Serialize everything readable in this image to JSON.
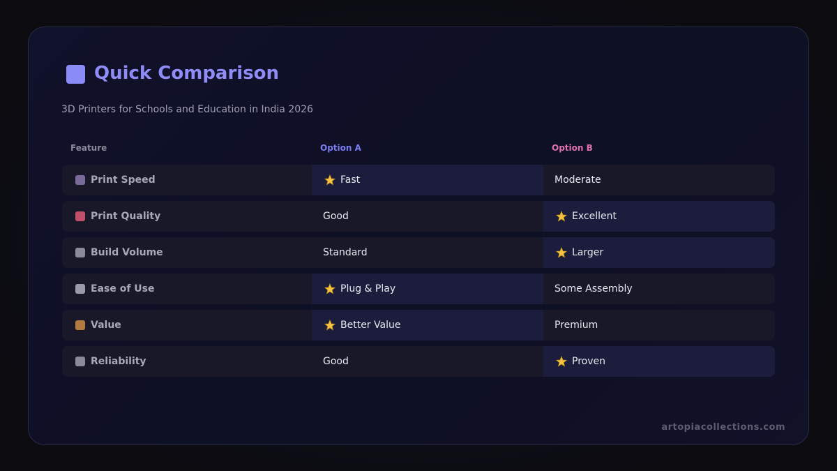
{
  "header": {
    "title": "Quick Comparison",
    "subtitle": "3D Printers for Schools and Education in India 2026"
  },
  "table": {
    "columns": [
      "Feature",
      "Option A",
      "Option B"
    ],
    "rows": [
      {
        "feature": "Print Speed",
        "a": "Fast",
        "b": "Moderate",
        "winner": "a"
      },
      {
        "feature": "Print Quality",
        "a": "Good",
        "b": "Excellent",
        "winner": "b"
      },
      {
        "feature": "Build Volume",
        "a": "Standard",
        "b": "Larger",
        "winner": "b"
      },
      {
        "feature": "Ease of Use",
        "a": "Plug & Play",
        "b": "Some Assembly",
        "winner": "a"
      },
      {
        "feature": "Value",
        "a": "Better Value",
        "b": "Premium",
        "winner": "a"
      },
      {
        "feature": "Reliability",
        "a": "Good",
        "b": "Proven",
        "winner": "b"
      }
    ]
  },
  "footer": "artopiacollections.com"
}
